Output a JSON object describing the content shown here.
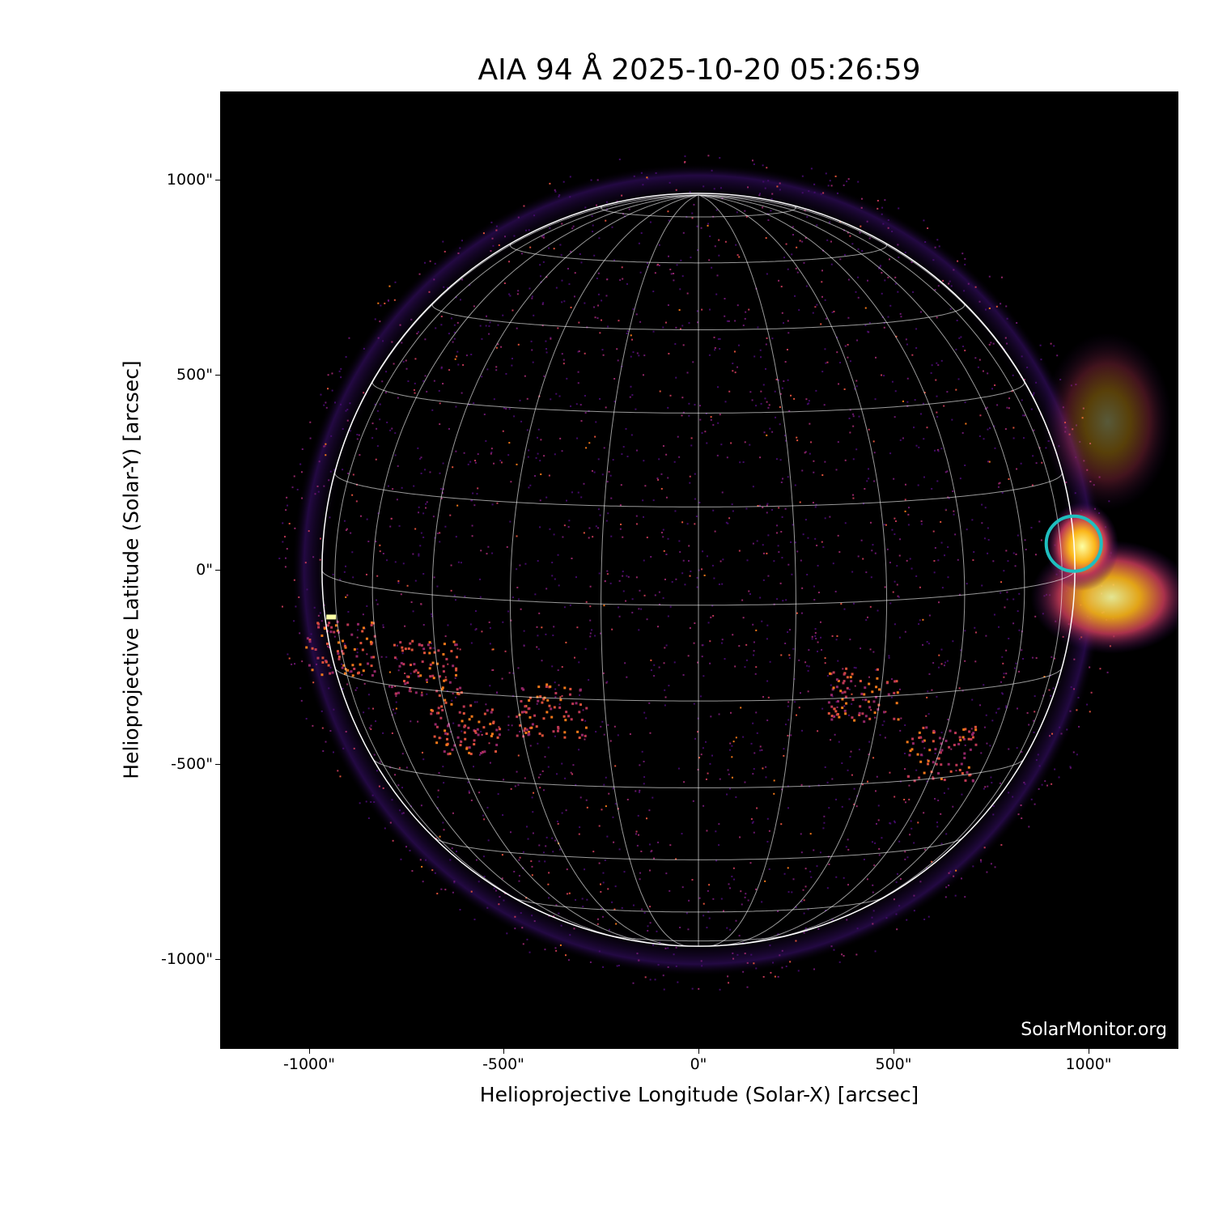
{
  "title": "AIA 94 Å 2025-10-20 05:26:59",
  "watermark": "SolarMonitor.org",
  "x_axis": {
    "label": "Helioprojective Longitude (Solar-X) [arcsec]",
    "ticks": [
      "-1000\"",
      "-500\"",
      "0\"",
      "500\"",
      "1000\""
    ],
    "tick_values": [
      -1000,
      -500,
      0,
      500,
      1000
    ],
    "range": [
      -1230,
      1230
    ]
  },
  "y_axis": {
    "label": "Helioprojective Latitude (Solar-Y) [arcsec]",
    "ticks": [
      "1000\"",
      "500\"",
      "0\"",
      "-500\"",
      "-1000\""
    ],
    "tick_values": [
      1000,
      500,
      0,
      -500,
      -1000
    ],
    "range": [
      -1230,
      1230
    ]
  },
  "solar_radius_arcsec": 966,
  "grid_spacing_deg": 15,
  "b0_deg": 5.4,
  "colormap": "inferno",
  "highlight_circle": {
    "x_arcsec": 963,
    "y_arcsec": 67,
    "color": "#1fbfbf"
  }
}
